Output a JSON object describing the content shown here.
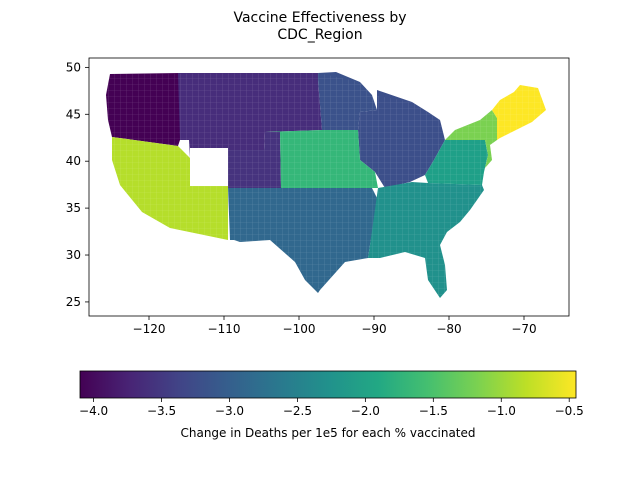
{
  "chart_data": {
    "type": "choropleth",
    "title_lines": [
      "Vaccine Effectiveness by",
      "CDC_Region"
    ],
    "x_axis": {
      "range": [
        -128,
        -64
      ],
      "ticks": [
        -120,
        -110,
        -100,
        -90,
        -80,
        -70
      ]
    },
    "y_axis": {
      "range": [
        23.5,
        51
      ],
      "ticks": [
        25,
        30,
        35,
        40,
        45,
        50
      ]
    },
    "regions": [
      {
        "id": "pacific-northwest",
        "value": -4.05,
        "color": "#440154"
      },
      {
        "id": "mountain-north",
        "value": -3.6,
        "color": "#472d7b"
      },
      {
        "id": "upper-midwest",
        "value": -3.3,
        "color": "#3b528b"
      },
      {
        "id": "great-lakes",
        "value": -3.35,
        "color": "#3c4f8a"
      },
      {
        "id": "mountain-central",
        "value": -3.65,
        "color": "#46337e"
      },
      {
        "id": "south-central",
        "value": -3.0,
        "color": "#31688e"
      },
      {
        "id": "southeast",
        "value": -2.6,
        "color": "#21918c"
      },
      {
        "id": "mid-atlantic",
        "value": -2.2,
        "color": "#1fa088"
      },
      {
        "id": "central-plains",
        "value": -1.85,
        "color": "#35b779"
      },
      {
        "id": "west",
        "value": -0.9,
        "color": "#b5de2b"
      },
      {
        "id": "new-york-new-jersey",
        "value": -1.3,
        "color": "#7ad151"
      },
      {
        "id": "new-england",
        "value": -0.45,
        "color": "#fde725"
      }
    ],
    "colorbar": {
      "min": -4.1,
      "max": -0.45,
      "ticks": [
        -4.0,
        -3.5,
        -3.0,
        -2.5,
        -2.0,
        -1.5,
        -1.0,
        -0.5
      ],
      "label": "Change in Deaths per 1e5 for each % vaccinated"
    }
  }
}
